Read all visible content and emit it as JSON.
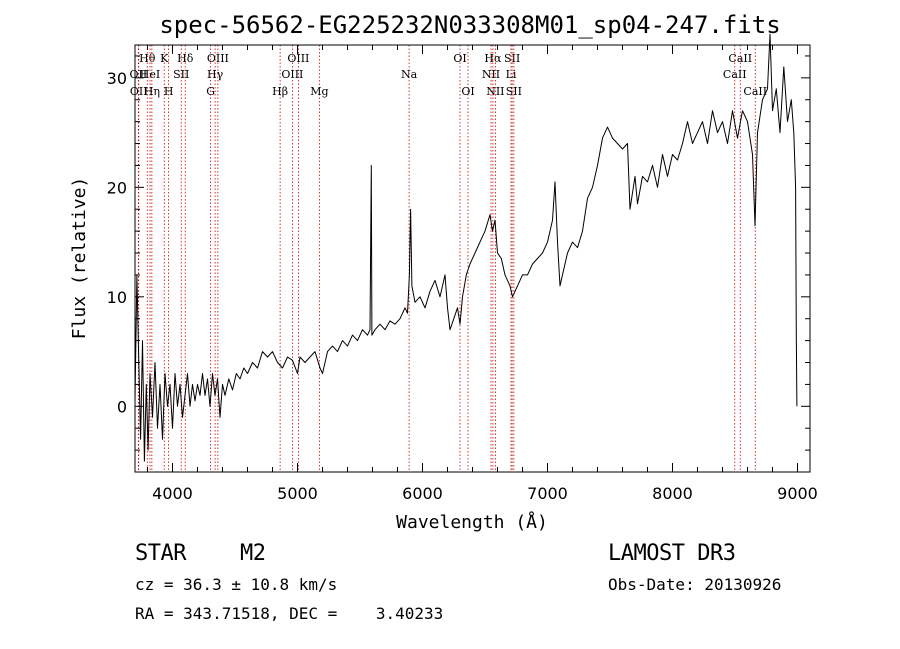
{
  "chart_data": {
    "type": "line",
    "title": "spec-56562-EG225232N033308M01_sp04-247.fits",
    "xlabel": "Wavelength (Å)",
    "ylabel": "Flux (relative)",
    "xlim": [
      3700,
      9100
    ],
    "ylim": [
      -6,
      33
    ],
    "xticks": [
      4000,
      5000,
      6000,
      7000,
      8000,
      9000
    ],
    "yticks": [
      0,
      10,
      20,
      30
    ],
    "x_minor_step": 200,
    "y_minor_step": 2,
    "grid": false,
    "line_color": "#000000",
    "marker_color": "#cc0000",
    "series": [
      {
        "name": "flux",
        "points": [
          [
            3700,
            0.5
          ],
          [
            3715,
            12
          ],
          [
            3730,
            4
          ],
          [
            3745,
            -3
          ],
          [
            3760,
            6
          ],
          [
            3775,
            -5
          ],
          [
            3790,
            2
          ],
          [
            3805,
            -4
          ],
          [
            3820,
            3
          ],
          [
            3840,
            -1
          ],
          [
            3860,
            4
          ],
          [
            3880,
            -2
          ],
          [
            3900,
            2
          ],
          [
            3920,
            -3
          ],
          [
            3940,
            3
          ],
          [
            3960,
            0
          ],
          [
            3980,
            2
          ],
          [
            4000,
            -2
          ],
          [
            4020,
            3
          ],
          [
            4040,
            0
          ],
          [
            4060,
            2
          ],
          [
            4080,
            -1
          ],
          [
            4100,
            1
          ],
          [
            4120,
            3
          ],
          [
            4140,
            0
          ],
          [
            4160,
            2
          ],
          [
            4180,
            0.5
          ],
          [
            4200,
            2
          ],
          [
            4220,
            1
          ],
          [
            4240,
            3
          ],
          [
            4260,
            1
          ],
          [
            4280,
            2.5
          ],
          [
            4300,
            0
          ],
          [
            4320,
            3
          ],
          [
            4340,
            1
          ],
          [
            4360,
            2.5
          ],
          [
            4380,
            -1
          ],
          [
            4400,
            2
          ],
          [
            4420,
            1
          ],
          [
            4450,
            2.5
          ],
          [
            4480,
            1.5
          ],
          [
            4510,
            3
          ],
          [
            4540,
            2.5
          ],
          [
            4570,
            3.5
          ],
          [
            4600,
            3
          ],
          [
            4640,
            4
          ],
          [
            4680,
            3.5
          ],
          [
            4720,
            5
          ],
          [
            4760,
            4.5
          ],
          [
            4800,
            5
          ],
          [
            4840,
            4
          ],
          [
            4880,
            3.5
          ],
          [
            4920,
            4.5
          ],
          [
            4960,
            4.2
          ],
          [
            5000,
            3
          ],
          [
            5020,
            4.5
          ],
          [
            5060,
            4
          ],
          [
            5100,
            4.5
          ],
          [
            5140,
            5
          ],
          [
            5180,
            3.5
          ],
          [
            5200,
            3
          ],
          [
            5240,
            5
          ],
          [
            5280,
            5.5
          ],
          [
            5320,
            5
          ],
          [
            5360,
            6
          ],
          [
            5400,
            5.5
          ],
          [
            5440,
            6.5
          ],
          [
            5480,
            6
          ],
          [
            5520,
            7
          ],
          [
            5560,
            6.5
          ],
          [
            5580,
            7
          ],
          [
            5590,
            22
          ],
          [
            5595,
            6.5
          ],
          [
            5620,
            7
          ],
          [
            5660,
            7.5
          ],
          [
            5700,
            7
          ],
          [
            5740,
            7.8
          ],
          [
            5780,
            7.5
          ],
          [
            5820,
            8
          ],
          [
            5860,
            9
          ],
          [
            5880,
            8.5
          ],
          [
            5895,
            12
          ],
          [
            5905,
            18
          ],
          [
            5915,
            11
          ],
          [
            5940,
            9.5
          ],
          [
            5980,
            10
          ],
          [
            6020,
            9
          ],
          [
            6060,
            10.5
          ],
          [
            6100,
            11.5
          ],
          [
            6140,
            10
          ],
          [
            6180,
            12
          ],
          [
            6200,
            9
          ],
          [
            6220,
            7
          ],
          [
            6250,
            8
          ],
          [
            6280,
            9
          ],
          [
            6300,
            7.5
          ],
          [
            6320,
            10
          ],
          [
            6350,
            12
          ],
          [
            6380,
            13
          ],
          [
            6420,
            14
          ],
          [
            6460,
            15
          ],
          [
            6500,
            16
          ],
          [
            6540,
            17.5
          ],
          [
            6560,
            16
          ],
          [
            6580,
            17
          ],
          [
            6600,
            14
          ],
          [
            6630,
            13.5
          ],
          [
            6660,
            12
          ],
          [
            6700,
            11
          ],
          [
            6720,
            10
          ],
          [
            6760,
            11
          ],
          [
            6800,
            12
          ],
          [
            6840,
            12
          ],
          [
            6880,
            13
          ],
          [
            6920,
            13.5
          ],
          [
            6960,
            14
          ],
          [
            7000,
            15
          ],
          [
            7040,
            17
          ],
          [
            7060,
            20.5
          ],
          [
            7080,
            15
          ],
          [
            7100,
            11
          ],
          [
            7120,
            12
          ],
          [
            7160,
            14
          ],
          [
            7200,
            15
          ],
          [
            7240,
            14.5
          ],
          [
            7280,
            16
          ],
          [
            7320,
            19
          ],
          [
            7360,
            20
          ],
          [
            7400,
            22
          ],
          [
            7440,
            24.5
          ],
          [
            7480,
            25.5
          ],
          [
            7520,
            24.5
          ],
          [
            7560,
            24
          ],
          [
            7600,
            23.5
          ],
          [
            7640,
            24
          ],
          [
            7660,
            18
          ],
          [
            7680,
            19.5
          ],
          [
            7700,
            21
          ],
          [
            7720,
            18.5
          ],
          [
            7760,
            21
          ],
          [
            7800,
            20.5
          ],
          [
            7840,
            22
          ],
          [
            7880,
            20
          ],
          [
            7920,
            23
          ],
          [
            7960,
            21
          ],
          [
            8000,
            23
          ],
          [
            8040,
            22.5
          ],
          [
            8080,
            24
          ],
          [
            8120,
            26
          ],
          [
            8160,
            24
          ],
          [
            8200,
            25
          ],
          [
            8240,
            26
          ],
          [
            8280,
            24
          ],
          [
            8320,
            27
          ],
          [
            8360,
            25
          ],
          [
            8400,
            26
          ],
          [
            8440,
            24
          ],
          [
            8480,
            27
          ],
          [
            8520,
            24.5
          ],
          [
            8560,
            27
          ],
          [
            8600,
            26
          ],
          [
            8640,
            23
          ],
          [
            8660,
            16.5
          ],
          [
            8680,
            25
          ],
          [
            8720,
            28
          ],
          [
            8760,
            29
          ],
          [
            8780,
            34
          ],
          [
            8800,
            27
          ],
          [
            8830,
            29
          ],
          [
            8860,
            25
          ],
          [
            8890,
            31
          ],
          [
            8920,
            26
          ],
          [
            8950,
            28
          ],
          [
            8970,
            25
          ],
          [
            8985,
            20
          ],
          [
            8990,
            6.5
          ],
          [
            8995,
            0
          ]
        ]
      }
    ],
    "line_markers": [
      {
        "label": "Hθ",
        "wavelength": 3798,
        "row": 1
      },
      {
        "label": "OII",
        "wavelength": 3727,
        "row": 2
      },
      {
        "label": "HeI",
        "wavelength": 3820,
        "row": 2
      },
      {
        "label": "OII",
        "wavelength": 3730,
        "row": 3
      },
      {
        "label": "Hη",
        "wavelength": 3835,
        "row": 3
      },
      {
        "label": "K",
        "wavelength": 3934,
        "row": 1
      },
      {
        "label": "SII",
        "wavelength": 4070,
        "row": 2
      },
      {
        "label": "H",
        "wavelength": 3969,
        "row": 3
      },
      {
        "label": "Hδ",
        "wavelength": 4102,
        "row": 1
      },
      {
        "label": "OIII",
        "wavelength": 4363,
        "row": 1
      },
      {
        "label": "Hγ",
        "wavelength": 4341,
        "row": 2
      },
      {
        "label": "G",
        "wavelength": 4305,
        "row": 3
      },
      {
        "label": "OIII",
        "wavelength": 5007,
        "row": 1
      },
      {
        "label": "OIII",
        "wavelength": 4959,
        "row": 2
      },
      {
        "label": "Hβ",
        "wavelength": 4861,
        "row": 3
      },
      {
        "label": "Mg",
        "wavelength": 5175,
        "row": 3
      },
      {
        "label": "Na",
        "wavelength": 5893,
        "row": 2
      },
      {
        "label": "OI",
        "wavelength": 6300,
        "row": 1
      },
      {
        "label": "OI",
        "wavelength": 6364,
        "row": 3
      },
      {
        "label": "Hα",
        "wavelength": 6563,
        "row": 1
      },
      {
        "label": "SII",
        "wavelength": 6717,
        "row": 1
      },
      {
        "label": "NII",
        "wavelength": 6548,
        "row": 2
      },
      {
        "label": "Li",
        "wavelength": 6708,
        "row": 2
      },
      {
        "label": "NII",
        "wavelength": 6583,
        "row": 3
      },
      {
        "label": "SII",
        "wavelength": 6731,
        "row": 3
      },
      {
        "label": "CaII",
        "wavelength": 8542,
        "row": 1
      },
      {
        "label": "CaII",
        "wavelength": 8498,
        "row": 2
      },
      {
        "label": "CaII",
        "wavelength": 8662,
        "row": 3
      }
    ]
  },
  "info": {
    "object_class": "STAR",
    "subclass": "M2",
    "survey": "LAMOST DR3",
    "redshift_text": "cz = 36.3 ± 10.8 km/s",
    "obs_date_text": "Obs-Date: 20130926",
    "coords_text": "RA = 343.71518, DEC =    3.40233"
  }
}
